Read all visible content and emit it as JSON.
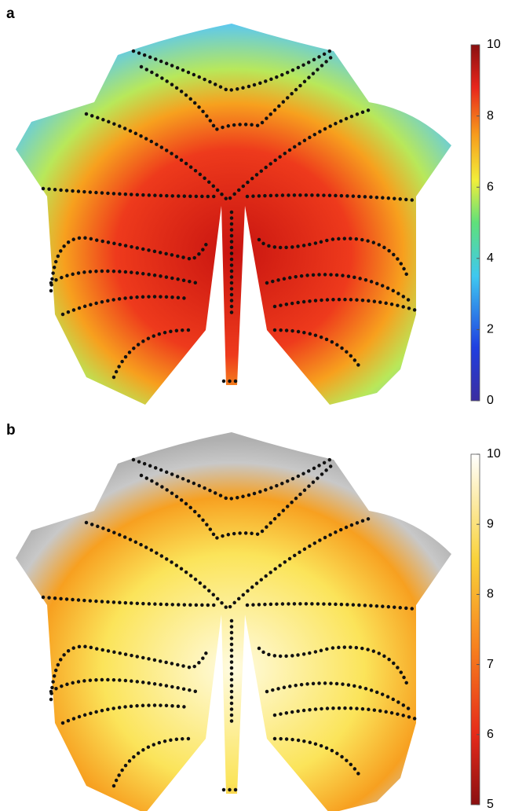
{
  "panels": [
    {
      "label": "a",
      "colorbar": {
        "ticks": [
          0,
          2,
          4,
          6,
          8,
          10
        ]
      }
    },
    {
      "label": "b",
      "colorbar": {
        "ticks": [
          5,
          6,
          7,
          8,
          9,
          10
        ]
      }
    }
  ]
}
